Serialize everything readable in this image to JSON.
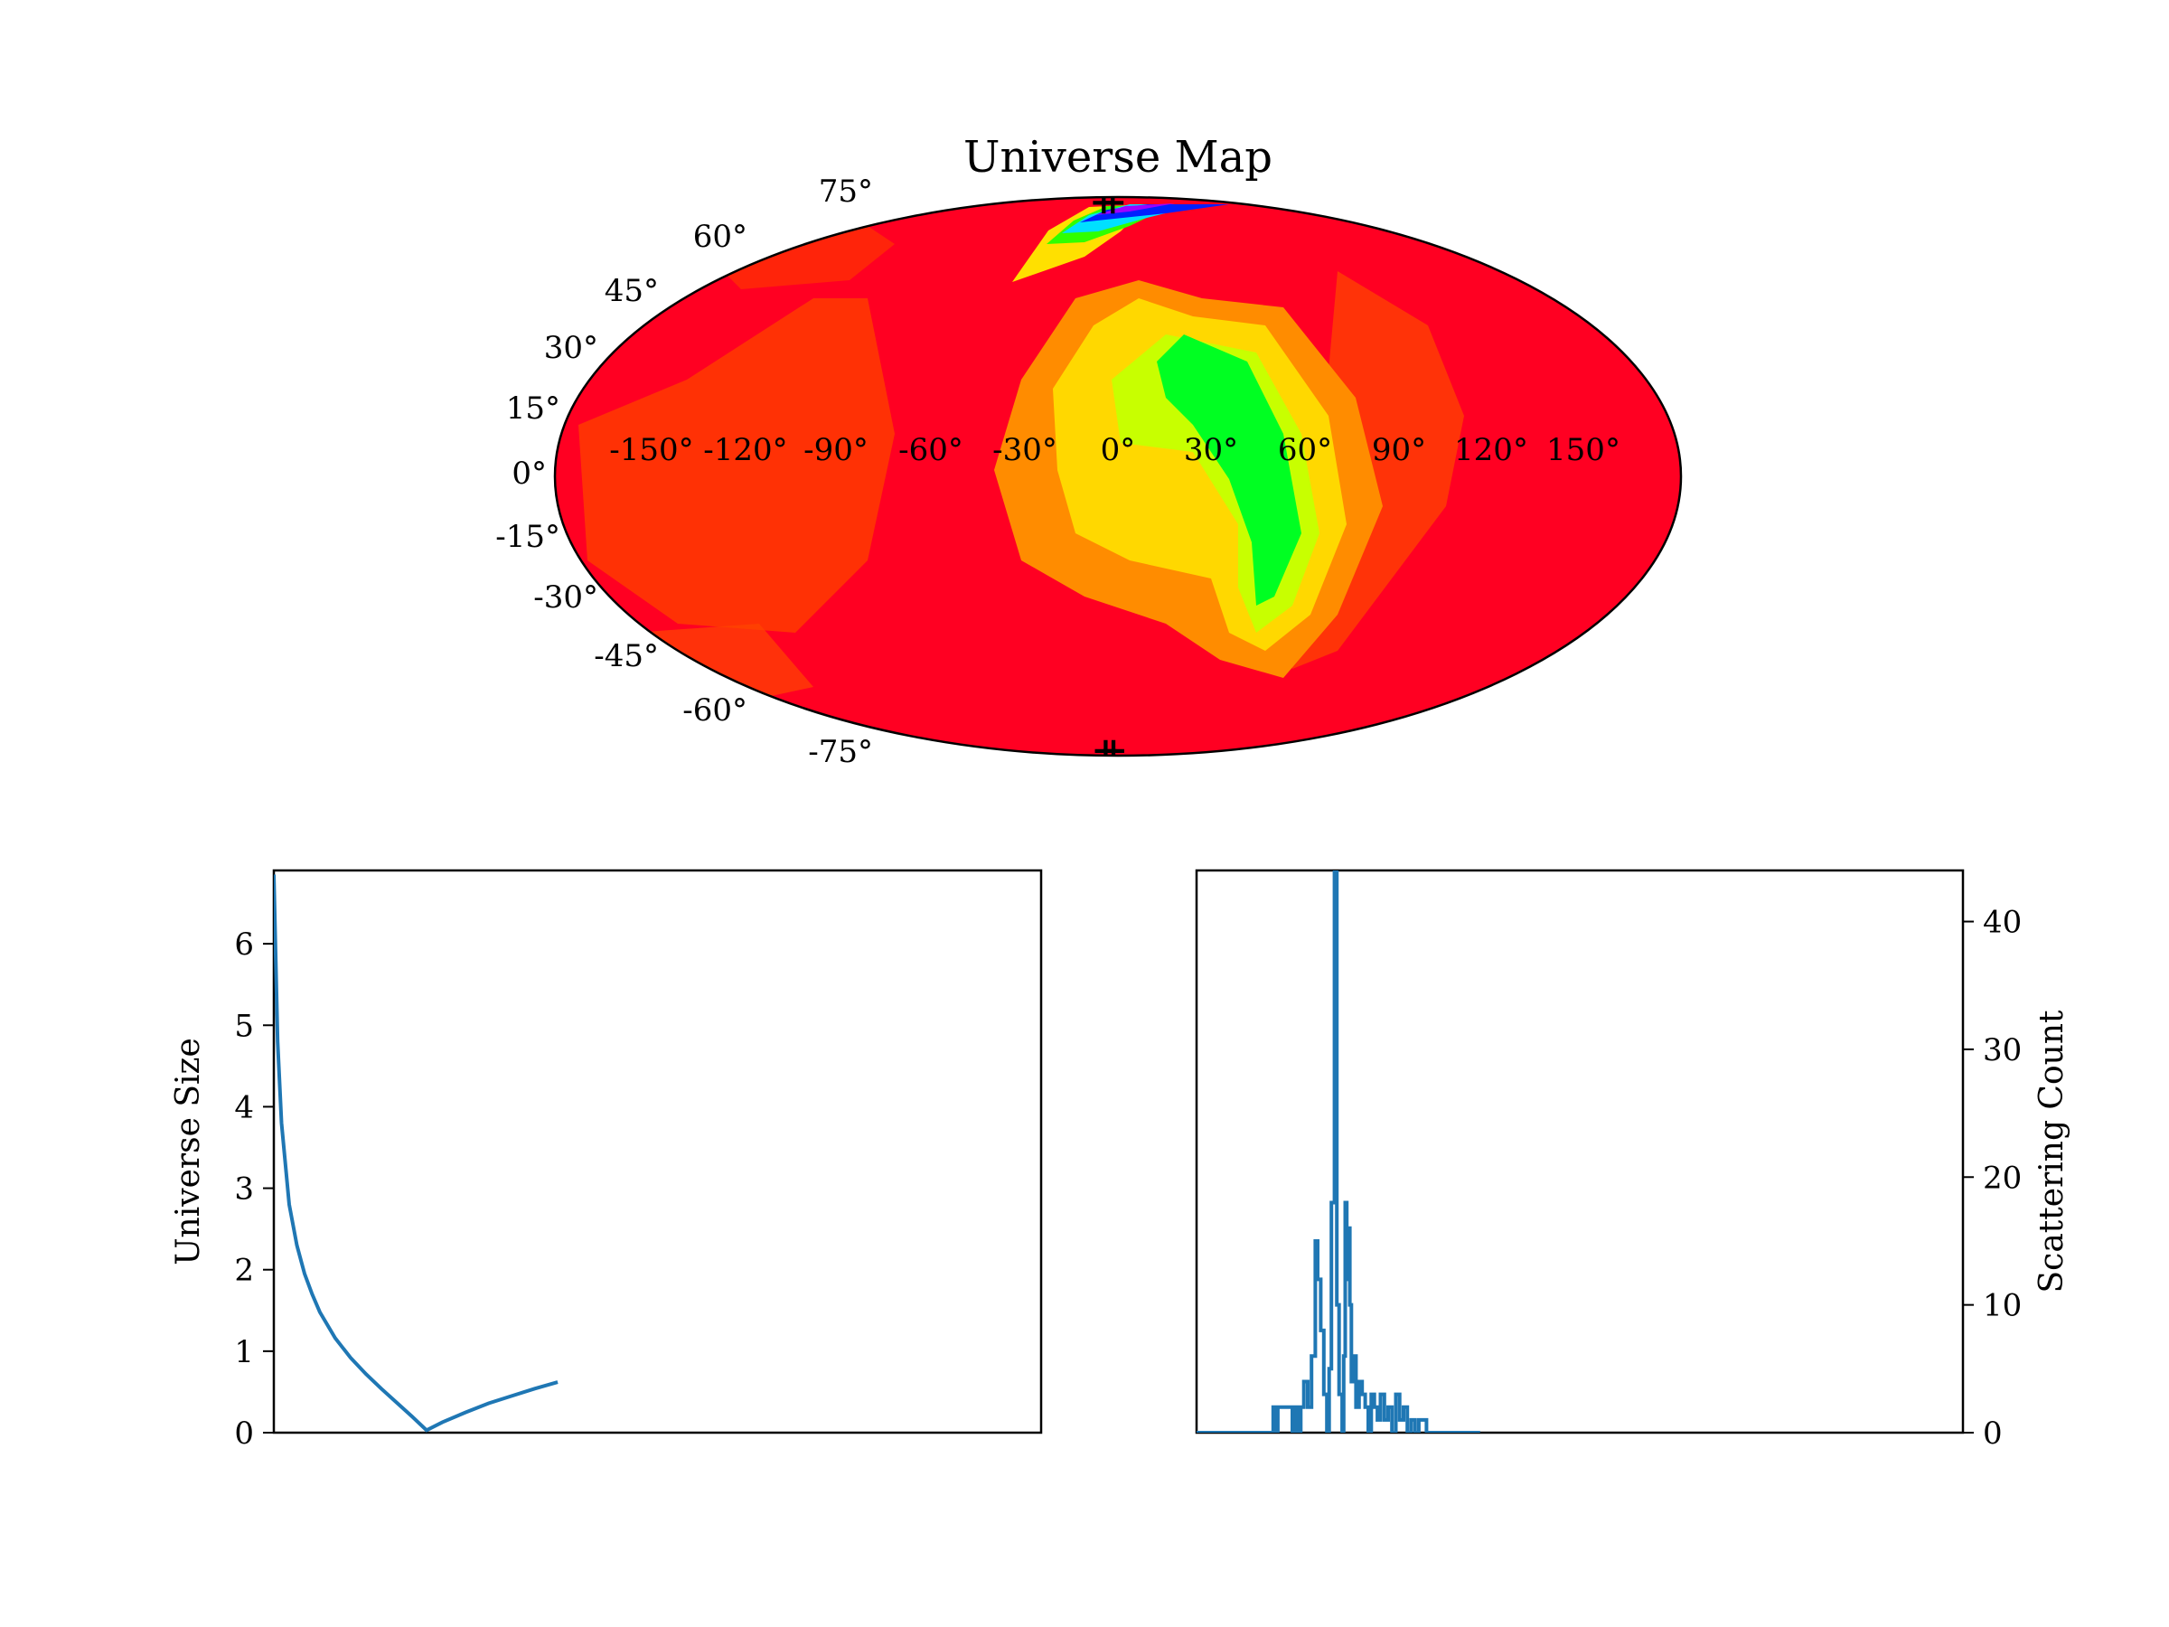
{
  "chart_data": [
    {
      "type": "heatmap",
      "projection": "mollweide",
      "title": "Universe Map",
      "lon_tick_labels": [
        "-150°",
        "-120°",
        "-90°",
        "-60°",
        "-30°",
        "0°",
        "30°",
        "60°",
        "90°",
        "120°",
        "150°"
      ],
      "lat_tick_labels": [
        "75°",
        "60°",
        "45°",
        "30°",
        "15°",
        "0°",
        "-15°",
        "-30°",
        "-45°",
        "-60°",
        "-75°"
      ],
      "lat_values": [
        75,
        60,
        45,
        30,
        15,
        0,
        -15,
        -30,
        -45,
        -60,
        -75
      ],
      "lon_values": [
        -150,
        -120,
        -90,
        -60,
        -30,
        0,
        30,
        60,
        90,
        120,
        150
      ],
      "colormap": "hsv (red background, yellow-green-blue highlights)",
      "colors": {
        "background": "#ff0022",
        "orange": "#ff6a00",
        "yellow": "#ffff00",
        "green": "#00ff00",
        "cyan": "#00ffff",
        "blue": "#0000ff",
        "magenta": "#ff00ff"
      },
      "grid": false,
      "markers": [
        {
          "lon": -22,
          "lat": 85,
          "symbol": "+",
          "color": "#ff0044"
        },
        {
          "lon": -8,
          "lat": 85,
          "symbol": "+",
          "color": "#ff00cc"
        },
        {
          "lon": -22,
          "lat": -86,
          "symbol": "+",
          "color": "#ff0044"
        },
        {
          "lon": -8,
          "lat": -86,
          "symbol": "+",
          "color": "#ff0044"
        }
      ]
    },
    {
      "type": "line",
      "ylabel": "Universe Size",
      "y_ticks": [
        0,
        1,
        2,
        3,
        4,
        5,
        6
      ],
      "ylim": [
        0,
        6.9
      ],
      "xlim": [
        0,
        1
      ],
      "x_ticks_visible": false,
      "line_color": "#1f77b4",
      "series": [
        {
          "x": [
            0.0,
            0.005,
            0.01,
            0.02,
            0.03,
            0.04,
            0.05,
            0.06,
            0.08,
            0.1,
            0.12,
            0.14,
            0.16,
            0.18,
            0.199,
            0.22,
            0.25,
            0.28,
            0.31,
            0.34,
            0.37
          ],
          "y": [
            6.85,
            4.8,
            3.8,
            2.8,
            2.3,
            1.95,
            1.7,
            1.48,
            1.16,
            0.92,
            0.72,
            0.54,
            0.37,
            0.2,
            0.03,
            0.13,
            0.25,
            0.36,
            0.45,
            0.54,
            0.62
          ]
        }
      ]
    },
    {
      "type": "line",
      "ylabel": "Scattering Count",
      "y_ticks": [
        0,
        10,
        20,
        30,
        40
      ],
      "ylim": [
        0,
        44
      ],
      "xlim": [
        0,
        1
      ],
      "x_ticks_visible": false,
      "y_axis_side": "right",
      "line_color": "#1f77b4",
      "series": [
        {
          "x": [
            0.0,
            0.1,
            0.1,
            0.103,
            0.103,
            0.106,
            0.106,
            0.125,
            0.125,
            0.128,
            0.128,
            0.132,
            0.132,
            0.136,
            0.136,
            0.14,
            0.14,
            0.145,
            0.145,
            0.15,
            0.15,
            0.155,
            0.155,
            0.158,
            0.158,
            0.162,
            0.162,
            0.166,
            0.166,
            0.17,
            0.17,
            0.173,
            0.173,
            0.176,
            0.176,
            0.18,
            0.18,
            0.183,
            0.183,
            0.186,
            0.186,
            0.19,
            0.19,
            0.192,
            0.192,
            0.194,
            0.194,
            0.196,
            0.196,
            0.198,
            0.198,
            0.2,
            0.2,
            0.202,
            0.202,
            0.205,
            0.205,
            0.208,
            0.208,
            0.212,
            0.212,
            0.216,
            0.216,
            0.22,
            0.22,
            0.224,
            0.224,
            0.228,
            0.228,
            0.232,
            0.232,
            0.236,
            0.236,
            0.24,
            0.24,
            0.245,
            0.245,
            0.25,
            0.25,
            0.255,
            0.255,
            0.26,
            0.26,
            0.265,
            0.265,
            0.27,
            0.27,
            0.275,
            0.275,
            0.28,
            0.28,
            0.285,
            0.285,
            0.29,
            0.29,
            0.3,
            0.3,
            0.37
          ],
          "y": [
            0,
            0,
            2,
            2,
            0,
            0,
            2,
            2,
            0,
            0,
            2,
            2,
            0,
            0,
            2,
            2,
            4,
            4,
            2,
            2,
            6,
            6,
            15,
            15,
            12,
            12,
            8,
            8,
            3,
            3,
            0,
            0,
            5,
            5,
            18,
            18,
            44,
            44,
            10,
            10,
            3,
            3,
            0,
            0,
            6,
            6,
            18,
            18,
            12,
            12,
            16,
            16,
            10,
            10,
            4,
            4,
            6,
            6,
            2,
            2,
            4,
            4,
            3,
            3,
            2,
            2,
            0,
            0,
            3,
            3,
            2,
            2,
            1,
            1,
            3,
            3,
            1,
            1,
            2,
            2,
            0,
            0,
            3,
            3,
            1,
            1,
            2,
            2,
            0,
            0,
            1,
            1,
            0,
            0,
            1,
            1,
            0,
            0
          ]
        }
      ]
    }
  ]
}
